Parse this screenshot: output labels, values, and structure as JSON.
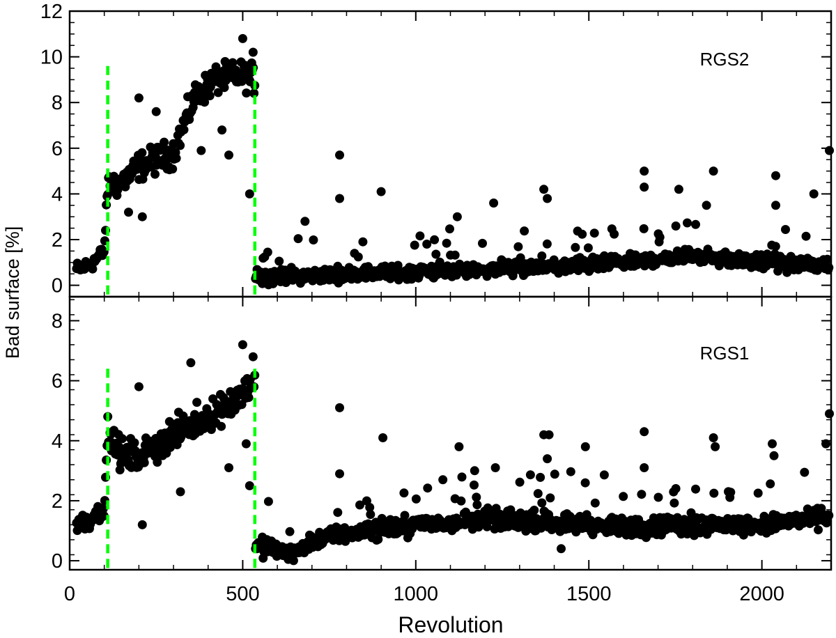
{
  "chart_data": {
    "type": "scatter",
    "xlabel": "Revolution",
    "ylabel": "Bad surface [%]",
    "xlim": [
      0,
      2200
    ],
    "x_ticks": [
      "0",
      "500",
      "1000",
      "1500",
      "2000"
    ],
    "marker_color": "#000000",
    "vline_color": "#00ff00",
    "vlines_x": [
      110,
      535
    ],
    "panels": [
      {
        "label": "RGS2",
        "ylim": [
          -0.5,
          12
        ],
        "y_ticks": [
          "0",
          "2",
          "4",
          "6",
          "8",
          "10",
          "12"
        ],
        "trend": [
          [
            20,
            0.7
          ],
          [
            60,
            0.9
          ],
          [
            100,
            1.5
          ],
          [
            110,
            4.4
          ],
          [
            150,
            4.5
          ],
          [
            200,
            5.2
          ],
          [
            300,
            5.8
          ],
          [
            360,
            8.2
          ],
          [
            420,
            9.0
          ],
          [
            500,
            9.2
          ],
          [
            535,
            9.0
          ],
          [
            536,
            0.4
          ],
          [
            600,
            0.4
          ],
          [
            800,
            0.5
          ],
          [
            1000,
            0.6
          ],
          [
            1200,
            0.7
          ],
          [
            1400,
            0.8
          ],
          [
            1600,
            1.0
          ],
          [
            1800,
            1.3
          ],
          [
            2000,
            1.0
          ],
          [
            2200,
            0.9
          ]
        ],
        "outliers": [
          {
            "x": 200,
            "y": 8.2
          },
          {
            "x": 210,
            "y": 3.0
          },
          {
            "x": 170,
            "y": 3.2
          },
          {
            "x": 250,
            "y": 7.6
          },
          {
            "x": 380,
            "y": 5.9
          },
          {
            "x": 460,
            "y": 5.7
          },
          {
            "x": 500,
            "y": 10.8
          },
          {
            "x": 520,
            "y": 4.0
          },
          {
            "x": 530,
            "y": 10.2
          },
          {
            "x": 440,
            "y": 6.8
          },
          {
            "x": 780,
            "y": 5.7
          },
          {
            "x": 780,
            "y": 3.8
          },
          {
            "x": 900,
            "y": 4.1
          },
          {
            "x": 1225,
            "y": 3.6
          },
          {
            "x": 1370,
            "y": 4.2
          },
          {
            "x": 1380,
            "y": 3.8
          },
          {
            "x": 1660,
            "y": 5.0
          },
          {
            "x": 1660,
            "y": 4.3
          },
          {
            "x": 1760,
            "y": 4.2
          },
          {
            "x": 1860,
            "y": 5.0
          },
          {
            "x": 1840,
            "y": 3.5
          },
          {
            "x": 2040,
            "y": 4.8
          },
          {
            "x": 2040,
            "y": 3.5
          },
          {
            "x": 2150,
            "y": 4.0
          },
          {
            "x": 2195,
            "y": 5.9
          },
          {
            "x": 680,
            "y": 2.8
          },
          {
            "x": 1120,
            "y": 3.0
          }
        ]
      },
      {
        "label": "RGS1",
        "ylim": [
          -0.3,
          8.8
        ],
        "y_ticks": [
          "0",
          "2",
          "4",
          "6",
          "8"
        ],
        "trend": [
          [
            20,
            1.2
          ],
          [
            60,
            1.4
          ],
          [
            100,
            1.8
          ],
          [
            110,
            4.2
          ],
          [
            150,
            3.5
          ],
          [
            200,
            3.5
          ],
          [
            300,
            4.2
          ],
          [
            400,
            4.8
          ],
          [
            500,
            5.6
          ],
          [
            535,
            6.0
          ],
          [
            536,
            0.5
          ],
          [
            600,
            0.4
          ],
          [
            660,
            0.3
          ],
          [
            700,
            0.7
          ],
          [
            800,
            0.9
          ],
          [
            1000,
            1.2
          ],
          [
            1200,
            1.4
          ],
          [
            1400,
            1.3
          ],
          [
            1600,
            1.1
          ],
          [
            1800,
            1.2
          ],
          [
            2000,
            1.2
          ],
          [
            2200,
            1.5
          ]
        ],
        "outliers": [
          {
            "x": 210,
            "y": 1.2
          },
          {
            "x": 320,
            "y": 2.3
          },
          {
            "x": 350,
            "y": 6.6
          },
          {
            "x": 460,
            "y": 3.1
          },
          {
            "x": 500,
            "y": 7.2
          },
          {
            "x": 510,
            "y": 3.9
          },
          {
            "x": 520,
            "y": 2.5
          },
          {
            "x": 530,
            "y": 6.8
          },
          {
            "x": 200,
            "y": 5.8
          },
          {
            "x": 780,
            "y": 5.1
          },
          {
            "x": 780,
            "y": 2.9
          },
          {
            "x": 905,
            "y": 4.1
          },
          {
            "x": 1125,
            "y": 3.8
          },
          {
            "x": 1230,
            "y": 3.1
          },
          {
            "x": 1370,
            "y": 4.2
          },
          {
            "x": 1385,
            "y": 4.2
          },
          {
            "x": 1380,
            "y": 3.4
          },
          {
            "x": 1490,
            "y": 3.8
          },
          {
            "x": 1660,
            "y": 4.3
          },
          {
            "x": 1660,
            "y": 3.1
          },
          {
            "x": 1860,
            "y": 4.1
          },
          {
            "x": 1865,
            "y": 3.8
          },
          {
            "x": 2030,
            "y": 3.9
          },
          {
            "x": 2035,
            "y": 3.5
          },
          {
            "x": 2185,
            "y": 3.9
          },
          {
            "x": 2195,
            "y": 4.9
          },
          {
            "x": 1170,
            "y": 3.0
          },
          {
            "x": 1420,
            "y": 0.4
          }
        ]
      }
    ]
  }
}
